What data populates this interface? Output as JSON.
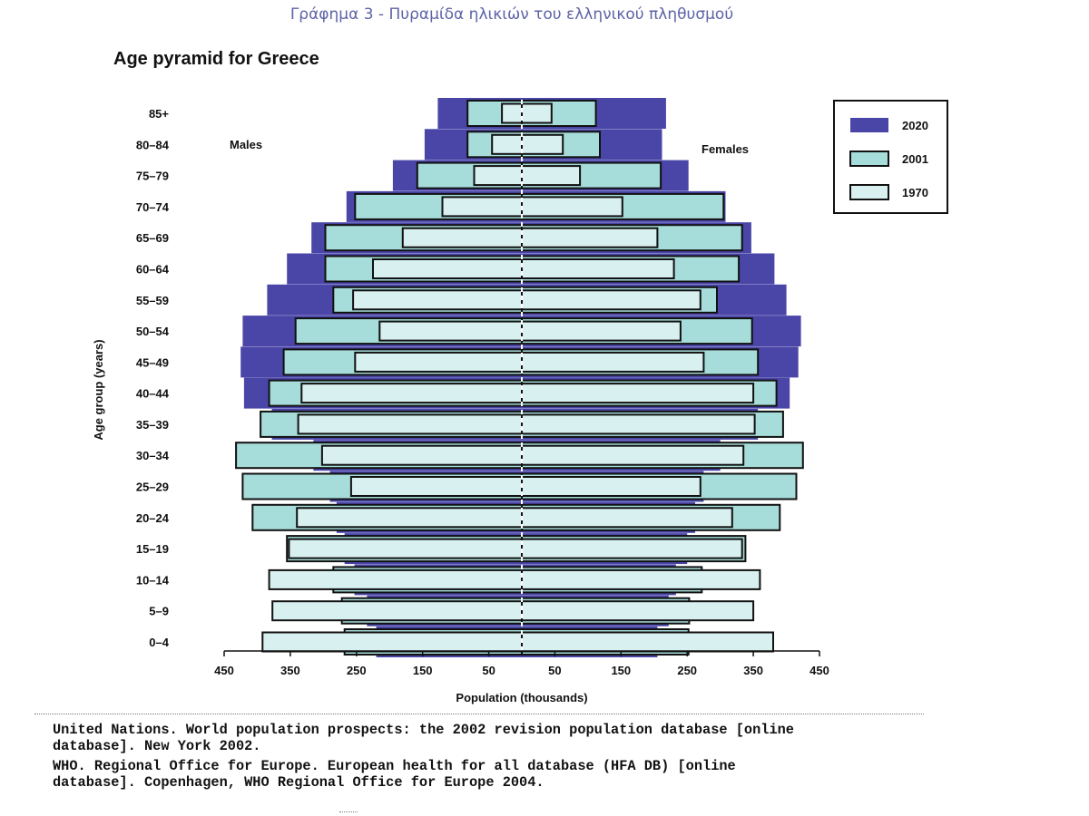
{
  "caption": "Γράφημα 3 - Πυραμίδα ηλικιών του ελληνικού πληθυσμού",
  "references": [
    "United Nations. World population prospects: the 2002 revision population database [online\ndatabase]. New York 2002.",
    "WHO. Regional Office for Europe. European health for all database (HFA DB) [online\ndatabase]. Copenhagen, WHO Regional Office for Europe 2004."
  ],
  "chart_data": {
    "type": "bar",
    "orientation": "horizontal-pyramid",
    "title": "Age pyramid for Greece",
    "xlabel": "Population (thousands)",
    "ylabel": "Age group (years)",
    "left_label": "Males",
    "right_label": "Females",
    "x_tick_labels": [
      "450",
      "350",
      "250",
      "150",
      "50",
      "50",
      "150",
      "250",
      "350",
      "450"
    ],
    "xlim": [
      -450,
      450
    ],
    "legend_position": "top-right",
    "categories": [
      "85+",
      "80–84",
      "75–79",
      "70–74",
      "65–69",
      "60–64",
      "55–59",
      "50–54",
      "45–49",
      "40–44",
      "35–39",
      "30–34",
      "25–29",
      "20–24",
      "15–19",
      "10–14",
      "5–9",
      "0–4"
    ],
    "series": [
      {
        "name": "2020",
        "color": "#4a46a8",
        "males": [
          127,
          147,
          195,
          265,
          318,
          355,
          385,
          422,
          425,
          420,
          378,
          315,
          290,
          280,
          268,
          253,
          234,
          220
        ],
        "females": [
          218,
          212,
          252,
          308,
          347,
          382,
          400,
          422,
          418,
          405,
          357,
          300,
          275,
          262,
          250,
          233,
          222,
          205
        ]
      },
      {
        "name": "2001",
        "color": "#a6dcd9",
        "males": [
          82,
          82,
          158,
          252,
          297,
          297,
          285,
          342,
          360,
          382,
          395,
          432,
          422,
          407,
          355,
          285,
          272,
          268
        ],
        "females": [
          112,
          118,
          210,
          305,
          333,
          328,
          295,
          348,
          357,
          385,
          395,
          425,
          415,
          390,
          338,
          272,
          253,
          252
        ]
      },
      {
        "name": "1970",
        "color": "#d9f0f0",
        "males": [
          30,
          45,
          72,
          120,
          180,
          225,
          255,
          215,
          252,
          333,
          338,
          302,
          258,
          340,
          352,
          382,
          377,
          392
        ],
        "females": [
          45,
          62,
          88,
          152,
          205,
          230,
          270,
          240,
          275,
          350,
          352,
          335,
          270,
          318,
          333,
          360,
          350,
          380
        ]
      }
    ]
  }
}
